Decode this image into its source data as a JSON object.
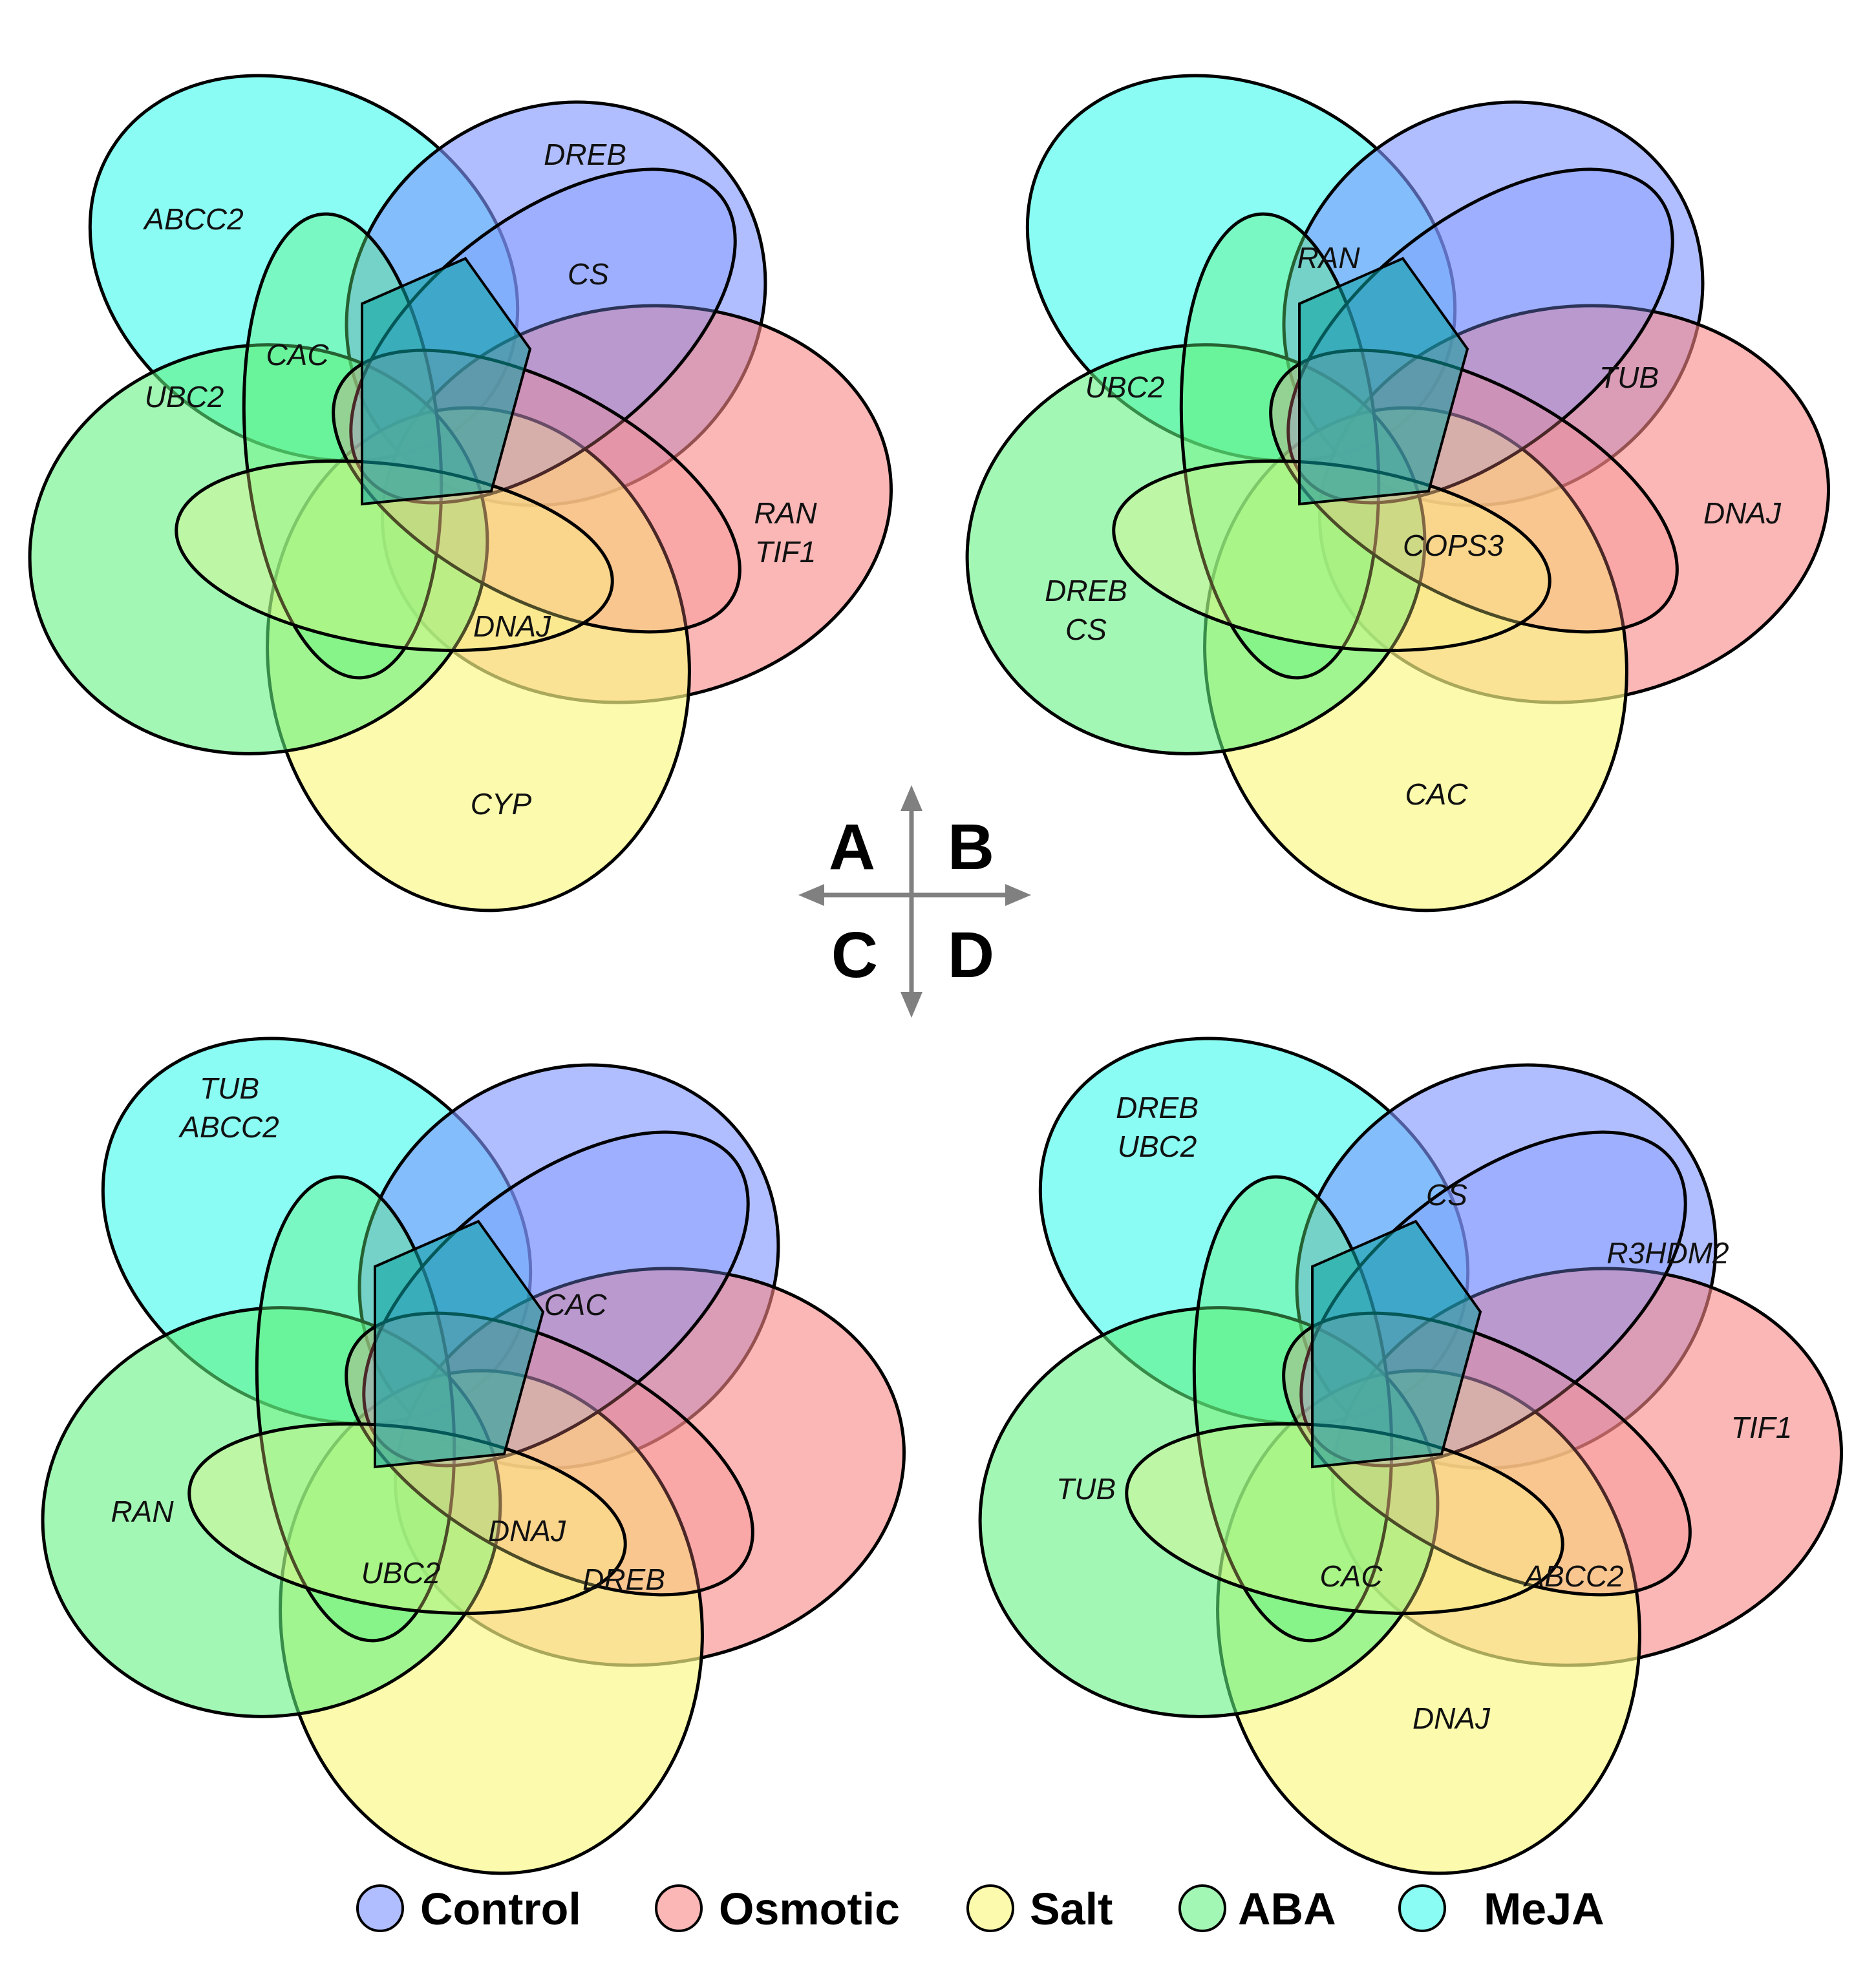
{
  "sets": [
    {
      "key": "control",
      "name": "Control",
      "color": "#7f96ff"
    },
    {
      "key": "osmotic",
      "name": "Osmotic",
      "color": "#f98585"
    },
    {
      "key": "salt",
      "name": "Salt",
      "color": "#fbf785"
    },
    {
      "key": "aba",
      "name": "ABA",
      "color": "#5ef27e"
    },
    {
      "key": "meja",
      "name": "MeJA",
      "color": "#52fbee"
    }
  ],
  "panels": [
    {
      "id": "A",
      "letter": "A",
      "labels": {
        "l1": "ABCC2",
        "l2": "DREB",
        "l3": "CS",
        "l4": "CAC",
        "l5": "UBC2",
        "l6": "RAN",
        "l7": "TIF1",
        "l8": "DNAJ",
        "l9": "CYP"
      }
    },
    {
      "id": "B",
      "letter": "B",
      "labels": {
        "l1": "RAN",
        "l2": "UBC2",
        "l3": "TUB",
        "l4": "DNAJ",
        "l5": "COPS3",
        "l6": "DREB",
        "l7": "CS",
        "l8": "CAC"
      }
    },
    {
      "id": "C",
      "letter": "C",
      "labels": {
        "l1": "TUB",
        "l2": "ABCC2",
        "l3": "CAC",
        "l4": "RAN",
        "l5": "DNAJ",
        "l6": "UBC2",
        "l7": "DREB"
      }
    },
    {
      "id": "D",
      "letter": "D",
      "labels": {
        "l1": "DREB",
        "l2": "UBC2",
        "l3": "CS",
        "l4": "R3HDM2",
        "l5": "TIF1",
        "l6": "TUB",
        "l7": "CAC",
        "l8": "ABCC2",
        "l9": "DNAJ"
      }
    }
  ],
  "legend": {
    "control": "Control",
    "osmotic": "Osmotic",
    "salt": "Salt",
    "aba": "ABA",
    "meja": "MeJA"
  }
}
